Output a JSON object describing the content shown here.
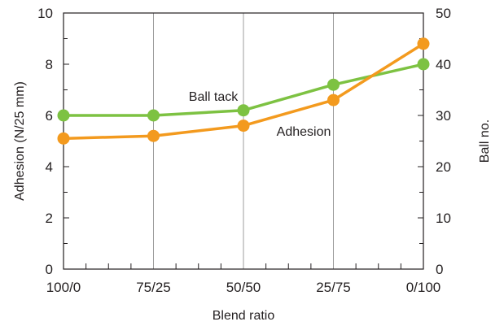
{
  "chart_data": {
    "type": "line",
    "categories": [
      "100/0",
      "75/25",
      "50/50",
      "25/75",
      "0/100"
    ],
    "xlabel": "Blend ratio",
    "ylabel_left": "Adhesion (N/25 mm)",
    "ylabel_right": "Ball no.",
    "ylim_left": [
      0,
      10
    ],
    "yticks_left": [
      0,
      2,
      4,
      6,
      8,
      10
    ],
    "yticks_left_labels": [
      "0",
      "2",
      "4",
      "6",
      "8",
      "10"
    ],
    "ylim_right": [
      0,
      50
    ],
    "yticks_right": [
      0,
      10,
      20,
      30,
      40,
      50
    ],
    "yticks_right_labels": [
      "0",
      "10",
      "20",
      "30",
      "40",
      "50"
    ],
    "grid": "vertical",
    "series": [
      {
        "name": "Ball tack",
        "axis": "right",
        "color": "#7dc242",
        "values": [
          30,
          30,
          31,
          36,
          40
        ]
      },
      {
        "name": "Adhesion",
        "axis": "left",
        "color": "#f39a1e",
        "values": [
          5.1,
          5.2,
          5.6,
          6.6,
          8.8
        ]
      }
    ]
  }
}
